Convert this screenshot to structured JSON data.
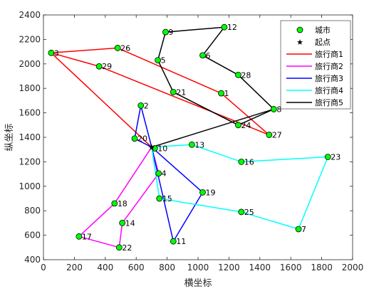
{
  "chart_data": {
    "type": "line",
    "title": "",
    "xlabel": "横坐标",
    "ylabel": "纵坐标",
    "xlim": [
      0,
      2000
    ],
    "ylim": [
      400,
      2400
    ],
    "xticks": [
      0,
      200,
      400,
      600,
      800,
      1000,
      1200,
      1400,
      1600,
      1800,
      2000
    ],
    "yticks": [
      400,
      600,
      800,
      1000,
      1200,
      1400,
      1600,
      1800,
      2000,
      2200,
      2400
    ],
    "grid": false,
    "legend_position": "top-right",
    "legend": {
      "cities": "城市",
      "start": "起点",
      "salesmen": [
        "旅行商1",
        "旅行商2",
        "旅行商3",
        "旅行商4",
        "旅行商5"
      ]
    },
    "start": {
      "x": 700,
      "y": 1320
    },
    "cities": [
      {
        "id": 1,
        "x": 1150,
        "y": 1760
      },
      {
        "id": 2,
        "x": 630,
        "y": 1660
      },
      {
        "id": 3,
        "x": 50,
        "y": 2090
      },
      {
        "id": 4,
        "x": 745,
        "y": 1105
      },
      {
        "id": 5,
        "x": 740,
        "y": 2030
      },
      {
        "id": 6,
        "x": 1030,
        "y": 2070
      },
      {
        "id": 7,
        "x": 1650,
        "y": 650
      },
      {
        "id": 8,
        "x": 1490,
        "y": 1630
      },
      {
        "id": 9,
        "x": 790,
        "y": 2260
      },
      {
        "id": 10,
        "x": 720,
        "y": 1310
      },
      {
        "id": 11,
        "x": 840,
        "y": 550
      },
      {
        "id": 12,
        "x": 1170,
        "y": 2300
      },
      {
        "id": 13,
        "x": 960,
        "y": 1340
      },
      {
        "id": 14,
        "x": 510,
        "y": 700
      },
      {
        "id": 15,
        "x": 750,
        "y": 900
      },
      {
        "id": 16,
        "x": 1280,
        "y": 1200
      },
      {
        "id": 17,
        "x": 230,
        "y": 590
      },
      {
        "id": 18,
        "x": 460,
        "y": 860
      },
      {
        "id": 19,
        "x": 1030,
        "y": 950
      },
      {
        "id": 20,
        "x": 590,
        "y": 1390
      },
      {
        "id": 21,
        "x": 840,
        "y": 1770
      },
      {
        "id": 22,
        "x": 490,
        "y": 500
      },
      {
        "id": 23,
        "x": 1840,
        "y": 1240
      },
      {
        "id": 24,
        "x": 1260,
        "y": 1500
      },
      {
        "id": 25,
        "x": 1280,
        "y": 790
      },
      {
        "id": 26,
        "x": 480,
        "y": 2130
      },
      {
        "id": 27,
        "x": 1460,
        "y": 1420
      },
      {
        "id": 28,
        "x": 1260,
        "y": 1910
      },
      {
        "id": 29,
        "x": 360,
        "y": 1980
      }
    ],
    "series": [
      {
        "name": "旅行商1",
        "color": "#ff0000",
        "route": [
          "start",
          3,
          26,
          1,
          27,
          29,
          3
        ]
      },
      {
        "name": "旅行商2",
        "color": "#ff00ff",
        "route": [
          "start",
          18,
          17,
          22,
          14,
          4,
          "start"
        ]
      },
      {
        "name": "旅行商3",
        "color": "#0000ff",
        "route": [
          "start",
          20,
          2,
          "start",
          19,
          11,
          "start"
        ]
      },
      {
        "name": "旅行商4",
        "color": "#00ffff",
        "route": [
          "start",
          13,
          16,
          23,
          7,
          25,
          15,
          "start"
        ]
      },
      {
        "name": "旅行商5",
        "color": "#000000",
        "route": [
          "start",
          8,
          24,
          21,
          5,
          9,
          12,
          6,
          28,
          8
        ]
      }
    ]
  }
}
